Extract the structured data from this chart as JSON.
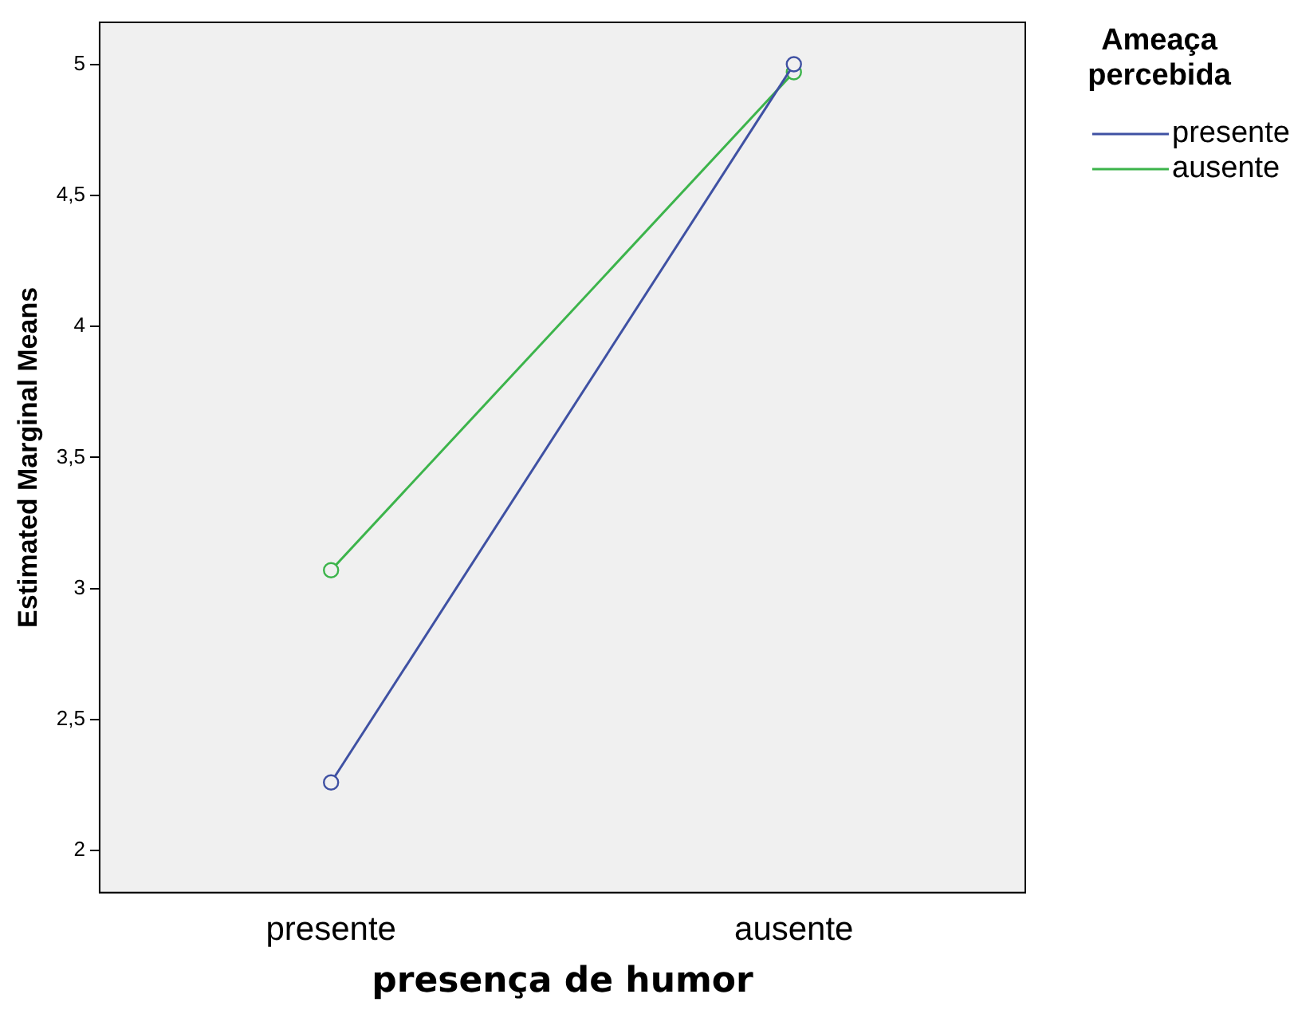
{
  "chart_data": {
    "type": "line",
    "xlabel": "presença de humor",
    "ylabel": "Estimated Marginal Means",
    "legend_title": "Ameaça percebida",
    "categories": [
      "presente",
      "ausente"
    ],
    "series": [
      {
        "name": "presente",
        "color": "#3f51a3",
        "values": [
          2.26,
          5.0
        ]
      },
      {
        "name": "ausente",
        "color": "#3cb44b",
        "values": [
          3.07,
          4.97
        ]
      }
    ],
    "ylim": [
      1.84,
      5.16
    ],
    "yticks": [
      2,
      {
        "value": 2.5,
        "label": "2,5"
      },
      3,
      {
        "value": 3.5,
        "label": "3,5"
      },
      4,
      {
        "value": 4.5,
        "label": "4,5"
      },
      5
    ],
    "grid": false,
    "legend": "top right",
    "marker": "circle",
    "line_style": "solid"
  }
}
